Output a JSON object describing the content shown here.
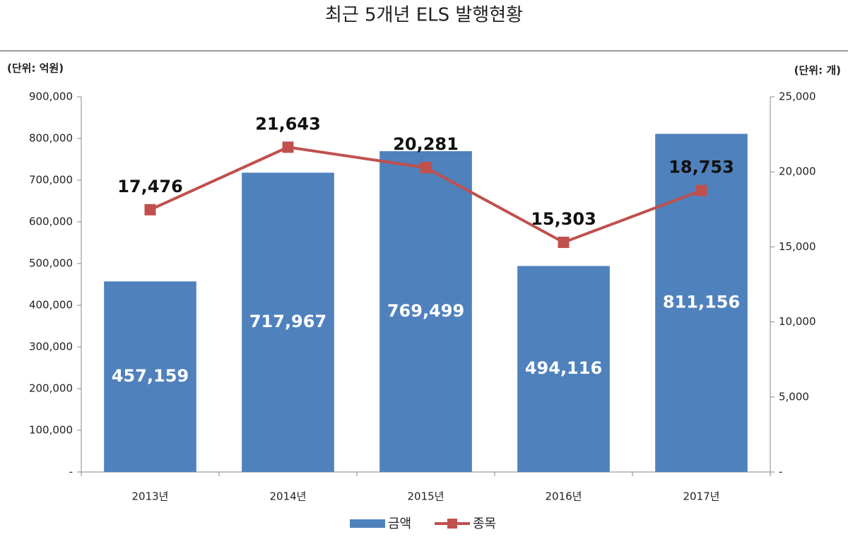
{
  "chart_data": {
    "type": "bar",
    "title": "최근 5개년 ELS 발행현황",
    "ylabel": "(단위: 억원)",
    "y2label": "(단위: 개)",
    "categories": [
      "2013년",
      "2014년",
      "2015년",
      "2016년",
      "2017년"
    ],
    "series": [
      {
        "name": "금액",
        "type": "bar",
        "color": "#4f81bd",
        "values": [
          457159,
          717967,
          769499,
          494116,
          811156
        ],
        "value_labels": [
          "457,159",
          "717,967",
          "769,499",
          "494,116",
          "811,156"
        ]
      },
      {
        "name": "종목",
        "type": "line",
        "axis": "y2",
        "color": "#c0504d",
        "values": [
          17476,
          21643,
          20281,
          15303,
          18753
        ],
        "value_labels": [
          "17,476",
          "21,643",
          "20,281",
          "15,303",
          "18,753"
        ]
      }
    ],
    "ylim": [
      0,
      900000
    ],
    "yticks": [
      {
        "value": 0,
        "label": "-"
      },
      {
        "value": 100000,
        "label": "100,000"
      },
      {
        "value": 200000,
        "label": "200,000"
      },
      {
        "value": 300000,
        "label": "300,000"
      },
      {
        "value": 400000,
        "label": "400,000"
      },
      {
        "value": 500000,
        "label": "500,000"
      },
      {
        "value": 600000,
        "label": "600,000"
      },
      {
        "value": 700000,
        "label": "700,000"
      },
      {
        "value": 800000,
        "label": "800,000"
      },
      {
        "value": 900000,
        "label": "900,000"
      }
    ],
    "y2lim": [
      0,
      25000
    ],
    "y2ticks": [
      {
        "value": 0,
        "label": "-"
      },
      {
        "value": 5000,
        "label": "5,000"
      },
      {
        "value": 10000,
        "label": "10,000"
      },
      {
        "value": 15000,
        "label": "15,000"
      },
      {
        "value": 20000,
        "label": "20,000"
      },
      {
        "value": 25000,
        "label": "25,000"
      }
    ],
    "grid": false
  }
}
